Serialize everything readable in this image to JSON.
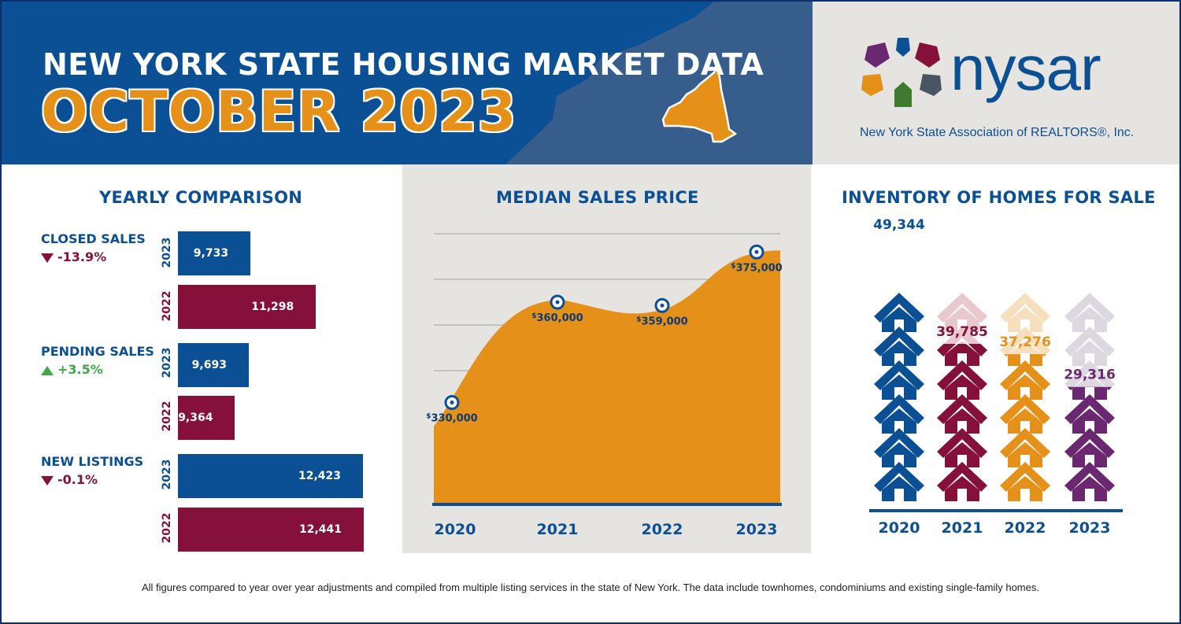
{
  "header": {
    "title_line1": "NEW YORK STATE HOUSING MARKET DATA",
    "title_line2": "OCTOBER 2023"
  },
  "logo": {
    "wordmark": "nysar",
    "subtitle": "New York State Association of REALTORS®, Inc.",
    "colors": [
      "#6b2770",
      "#85103a",
      "#0b4f95",
      "#e59018",
      "#3e7a2f",
      "#4a5563"
    ]
  },
  "yearly_comparison": {
    "title": "YEARLY COMPARISON",
    "metrics": [
      {
        "label": "CLOSED SALES",
        "change": "-13.9%",
        "direction": "down",
        "year_2023_label": "2023",
        "year_2022_label": "2022",
        "value_2023": "9,733",
        "value_2022": "11,298"
      },
      {
        "label": "PENDING SALES",
        "change": "+3.5%",
        "direction": "up",
        "year_2023_label": "2023",
        "year_2022_label": "2022",
        "value_2023": "9,693",
        "value_2022": "9,364"
      },
      {
        "label": "NEW LISTINGS",
        "change": "-0.1%",
        "direction": "down",
        "year_2023_label": "2023",
        "year_2022_label": "2022",
        "value_2023": "12,423",
        "value_2022": "12,441"
      }
    ]
  },
  "median_price": {
    "title": "MEDIAN SALES PRICE",
    "currency_symbol": "$"
  },
  "inventory": {
    "title": "INVENTORY OF HOMES FOR SALE"
  },
  "chart_data": [
    {
      "type": "bar",
      "title": "YEARLY COMPARISON",
      "categories": [
        "CLOSED SALES",
        "PENDING SALES",
        "NEW LISTINGS"
      ],
      "series": [
        {
          "name": "2023",
          "values": [
            9733,
            9693,
            12423
          ],
          "color": "#0b4f95"
        },
        {
          "name": "2022",
          "values": [
            11298,
            9364,
            12441
          ],
          "color": "#85103a"
        }
      ],
      "orientation": "horizontal"
    },
    {
      "type": "area",
      "title": "MEDIAN SALES PRICE",
      "x": [
        "2020",
        "2021",
        "2022",
        "2023"
      ],
      "values": [
        330000,
        360000,
        359000,
        375000
      ],
      "labels": [
        "330,000",
        "360,000",
        "359,000",
        "375,000"
      ],
      "fill_color": "#e59018",
      "marker_color": "#0b4f95",
      "grid": true
    },
    {
      "type": "bar",
      "title": "INVENTORY OF HOMES FOR SALE",
      "x": [
        "2020",
        "2021",
        "2022",
        "2023"
      ],
      "values": [
        49344,
        39785,
        37276,
        29316
      ],
      "labels": [
        "49,344",
        "39,785",
        "37,276",
        "29,316"
      ],
      "colors": [
        "#0b4f95",
        "#85103a",
        "#e59018",
        "#6b2770"
      ],
      "pictogram": "house-icon"
    }
  ],
  "footer": {
    "text": "All figures compared to year over year adjustments and compiled from multiple listing services in the state of New York.  The data include townhomes, condominiums and existing single-family homes."
  }
}
